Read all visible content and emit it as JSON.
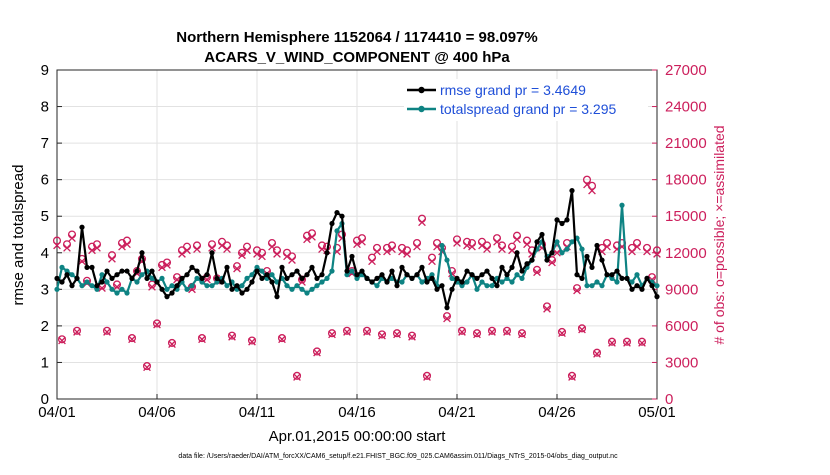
{
  "chart_data": {
    "type": "line",
    "title": "Northern Hemisphere 1152064 / 1174410 = 98.097%",
    "subtitle": "ACARS_V_WIND_COMPONENT @ 400 hPa",
    "xlabel": "Apr.01,2015 00:00:00 start",
    "ylabel": "rmse and totalspread",
    "ylabel_right": "# of obs: o=possible; ×=assimilated",
    "footnote": "data file: /Users/raeder/DAI/ATM_forcXX/CAM6_setup/f.e21.FHIST_BGC.f09_025.CAM6assim.011/Diags_NTrS_2015-04/obs_diag_output.nc",
    "xlim": [
      0,
      30
    ],
    "ylim": [
      0,
      9
    ],
    "ylim_right": [
      0,
      27000
    ],
    "x_ticks": [
      0,
      5,
      10,
      15,
      20,
      25,
      30
    ],
    "x_tick_labels": [
      "04/01",
      "04/06",
      "04/11",
      "04/16",
      "04/21",
      "04/26",
      "05/01"
    ],
    "y_ticks": [
      0,
      1,
      2,
      3,
      4,
      5,
      6,
      7,
      8,
      9
    ],
    "y_tick_labels": [
      "0",
      "1",
      "2",
      "3",
      "4",
      "5",
      "6",
      "7",
      "8",
      "9"
    ],
    "y_right_ticks": [
      0,
      3000,
      6000,
      9000,
      12000,
      15000,
      18000,
      21000,
      24000,
      27000
    ],
    "y_right_tick_labels": [
      "0",
      "3000",
      "6000",
      "9000",
      "12000",
      "15000",
      "18000",
      "21000",
      "24000",
      "27000"
    ],
    "grid": true,
    "legend_position": "top-right",
    "colors": {
      "rmse": "#000000",
      "spread": "#0e8383",
      "obs": "#cc1f5c",
      "legend_text": "#1f4fd8",
      "grid": "#e2e2e2"
    },
    "series": [
      {
        "name": "rmse grand pr = 3.4649",
        "x": [
          0.0,
          0.25,
          0.5,
          0.75,
          1.0,
          1.25,
          1.5,
          1.75,
          2.0,
          2.25,
          2.5,
          2.75,
          3.0,
          3.25,
          3.5,
          3.75,
          4.0,
          4.25,
          4.5,
          4.75,
          5.0,
          5.25,
          5.5,
          5.75,
          6.0,
          6.25,
          6.5,
          6.75,
          7.0,
          7.25,
          7.5,
          7.75,
          8.0,
          8.25,
          8.5,
          8.75,
          9.0,
          9.25,
          9.5,
          9.75,
          10.0,
          10.25,
          10.5,
          10.75,
          11.0,
          11.25,
          11.5,
          11.75,
          12.0,
          12.25,
          12.5,
          12.75,
          13.0,
          13.25,
          13.5,
          13.75,
          14.0,
          14.25,
          14.5,
          14.75,
          15.0,
          15.25,
          15.5,
          15.75,
          16.0,
          16.25,
          16.5,
          16.75,
          17.0,
          17.25,
          17.5,
          17.75,
          18.0,
          18.25,
          18.5,
          18.75,
          19.0,
          19.25,
          19.5,
          19.75,
          20.0,
          20.25,
          20.5,
          20.75,
          21.0,
          21.25,
          21.5,
          21.75,
          22.0,
          22.25,
          22.5,
          22.75,
          23.0,
          23.25,
          23.5,
          23.75,
          24.0,
          24.25,
          24.5,
          24.75,
          25.0,
          25.25,
          25.5,
          25.75,
          26.0,
          26.25,
          26.5,
          26.75,
          27.0,
          27.25,
          27.5,
          27.75,
          28.0,
          28.25,
          28.5,
          28.75,
          29.0,
          29.25,
          29.5,
          29.75,
          30.0
        ],
        "values": [
          3.3,
          3.2,
          3.4,
          3.1,
          3.3,
          4.7,
          3.6,
          3.6,
          3.1,
          3.2,
          3.5,
          3.3,
          3.4,
          3.5,
          3.5,
          3.3,
          3.5,
          4.0,
          3.3,
          3.5,
          3.2,
          3.0,
          2.8,
          2.9,
          3.1,
          3.3,
          3.4,
          3.6,
          3.5,
          3.3,
          3.4,
          4.0,
          3.3,
          3.2,
          3.6,
          3.0,
          3.1,
          2.9,
          3.0,
          3.2,
          3.5,
          3.3,
          3.4,
          3.2,
          2.8,
          3.6,
          3.3,
          3.4,
          3.5,
          3.3,
          3.4,
          3.6,
          3.3,
          3.4,
          4.0,
          4.8,
          5.1,
          5.0,
          3.5,
          3.9,
          3.4,
          3.5,
          3.3,
          3.2,
          3.3,
          3.4,
          3.2,
          3.5,
          3.1,
          3.6,
          3.4,
          3.3,
          3.4,
          3.6,
          3.2,
          3.3,
          3.0,
          3.1,
          2.5,
          3.0,
          3.3,
          3.2,
          3.5,
          3.4,
          3.3,
          3.4,
          3.5,
          3.3,
          3.1,
          3.6,
          3.4,
          3.6,
          4.0,
          3.5,
          3.7,
          3.8,
          4.3,
          4.5,
          3.8,
          4.0,
          4.9,
          4.8,
          4.9,
          5.7,
          3.4,
          3.3,
          3.9,
          3.6,
          4.2,
          3.8,
          3.4,
          3.4,
          3.5,
          3.3,
          3.3,
          3.0,
          3.1,
          3.0,
          3.3,
          3.1,
          2.8
        ],
        "color": "#000000"
      },
      {
        "name": "totalspread grand pr = 3.295",
        "x": [
          0.0,
          0.25,
          0.5,
          0.75,
          1.0,
          1.25,
          1.5,
          1.75,
          2.0,
          2.25,
          2.5,
          2.75,
          3.0,
          3.25,
          3.5,
          3.75,
          4.0,
          4.25,
          4.5,
          4.75,
          5.0,
          5.25,
          5.5,
          5.75,
          6.0,
          6.25,
          6.5,
          6.75,
          7.0,
          7.25,
          7.5,
          7.75,
          8.0,
          8.25,
          8.5,
          8.75,
          9.0,
          9.25,
          9.5,
          9.75,
          10.0,
          10.25,
          10.5,
          10.75,
          11.0,
          11.25,
          11.5,
          11.75,
          12.0,
          12.25,
          12.5,
          12.75,
          13.0,
          13.25,
          13.5,
          13.75,
          14.0,
          14.25,
          14.5,
          14.75,
          15.0,
          15.25,
          15.5,
          15.75,
          16.0,
          16.25,
          16.5,
          16.75,
          17.0,
          17.25,
          17.5,
          17.75,
          18.0,
          18.25,
          18.5,
          18.75,
          19.0,
          19.25,
          19.5,
          19.75,
          20.0,
          20.25,
          20.5,
          20.75,
          21.0,
          21.25,
          21.5,
          21.75,
          22.0,
          22.25,
          22.5,
          22.75,
          23.0,
          23.25,
          23.5,
          23.75,
          24.0,
          24.25,
          24.5,
          24.75,
          25.0,
          25.25,
          25.5,
          25.75,
          26.0,
          26.25,
          26.5,
          26.75,
          27.0,
          27.25,
          27.5,
          27.75,
          28.0,
          28.25,
          28.5,
          28.75,
          29.0,
          29.25,
          29.5,
          29.75,
          30.0
        ],
        "values": [
          3.0,
          3.6,
          3.5,
          3.4,
          3.3,
          3.1,
          3.2,
          3.1,
          3.0,
          3.4,
          3.2,
          3.0,
          2.9,
          3.0,
          2.9,
          3.3,
          3.2,
          3.4,
          3.5,
          3.3,
          3.2,
          3.3,
          3.0,
          3.1,
          3.0,
          3.2,
          3.0,
          3.1,
          3.3,
          3.2,
          3.1,
          3.1,
          3.2,
          3.3,
          3.1,
          3.2,
          3.0,
          3.1,
          3.3,
          3.4,
          3.6,
          3.5,
          3.3,
          3.4,
          3.2,
          3.3,
          3.1,
          3.0,
          3.1,
          3.0,
          2.9,
          3.0,
          3.1,
          3.2,
          3.3,
          3.5,
          4.6,
          4.8,
          3.4,
          3.5,
          3.3,
          3.4,
          3.3,
          3.2,
          3.1,
          3.3,
          3.2,
          3.3,
          3.2,
          3.2,
          3.4,
          3.3,
          3.4,
          3.2,
          3.3,
          3.4,
          3.1,
          4.2,
          3.8,
          3.3,
          3.2,
          3.1,
          3.2,
          3.4,
          3.0,
          3.2,
          3.1,
          3.1,
          3.3,
          3.2,
          3.3,
          3.2,
          3.4,
          3.3,
          3.6,
          3.8,
          4.1,
          4.3,
          3.9,
          4.0,
          4.3,
          4.0,
          4.1,
          4.3,
          4.4,
          4.1,
          3.1,
          3.1,
          3.2,
          3.1,
          3.4,
          3.3,
          3.2,
          5.3,
          3.3,
          3.2,
          3.4,
          3.1,
          3.3,
          3.2,
          3.1
        ],
        "color": "#0e8383"
      },
      {
        "name": "# of obs possible",
        "axis": "right",
        "marker": "circle",
        "x": [
          0.0,
          0.25,
          0.5,
          0.75,
          1.0,
          1.25,
          1.5,
          1.75,
          2.0,
          2.25,
          2.5,
          2.75,
          3.0,
          3.25,
          3.5,
          3.75,
          4.0,
          4.25,
          4.5,
          4.75,
          5.0,
          5.25,
          5.5,
          5.75,
          6.0,
          6.25,
          6.5,
          6.75,
          7.0,
          7.25,
          7.5,
          7.75,
          8.0,
          8.25,
          8.5,
          8.75,
          9.0,
          9.25,
          9.5,
          9.75,
          10.0,
          10.25,
          10.5,
          10.75,
          11.0,
          11.25,
          11.5,
          11.75,
          12.0,
          12.25,
          12.5,
          12.75,
          13.0,
          13.25,
          13.5,
          13.75,
          14.0,
          14.25,
          14.5,
          14.75,
          15.0,
          15.25,
          15.5,
          15.75,
          16.0,
          16.25,
          16.5,
          16.75,
          17.0,
          17.25,
          17.5,
          17.75,
          18.0,
          18.25,
          18.5,
          18.75,
          19.0,
          19.25,
          19.5,
          19.75,
          20.0,
          20.25,
          20.5,
          20.75,
          21.0,
          21.25,
          21.5,
          21.75,
          22.0,
          22.25,
          22.5,
          22.75,
          23.0,
          23.25,
          23.5,
          23.75,
          24.0,
          24.25,
          24.5,
          24.75,
          25.0,
          25.25,
          25.5,
          25.75,
          26.0,
          26.25,
          26.5,
          26.75,
          27.0,
          27.25,
          27.5,
          27.75,
          28.0,
          28.25,
          28.5,
          28.75,
          29.0,
          29.25,
          29.5,
          29.75,
          30.0
        ],
        "values": [
          13000,
          4900,
          12700,
          13500,
          5600,
          11500,
          9700,
          12500,
          12700,
          9300,
          5600,
          11800,
          9400,
          12800,
          13000,
          5000,
          10500,
          11500,
          2700,
          9400,
          6200,
          11000,
          11200,
          4600,
          10000,
          12200,
          12500,
          9200,
          12600,
          5000,
          10000,
          12700,
          9900,
          12900,
          12600,
          5200,
          10900,
          12000,
          12500,
          4800,
          12200,
          12000,
          10500,
          12800,
          12200,
          5000,
          12000,
          11700,
          1900,
          9800,
          13400,
          13600,
          3900,
          12600,
          12500,
          5400,
          12400,
          13500,
          5600,
          10500,
          13000,
          13200,
          5600,
          11600,
          12400,
          5300,
          12400,
          12600,
          5400,
          12400,
          12200,
          5200,
          12800,
          14800,
          1900,
          11600,
          12800,
          12400,
          6800,
          10500,
          13100,
          5600,
          12900,
          12800,
          5400,
          12900,
          12600,
          5600,
          13200,
          12600,
          5600,
          12500,
          13400,
          5400,
          13000,
          12200,
          10600,
          12700,
          7600,
          11400,
          12300,
          5500,
          12800,
          1900,
          9100,
          5800,
          18000,
          17500,
          3800,
          12400,
          12800,
          4700,
          12600,
          12800,
          4700,
          12400,
          12800,
          4700,
          12400,
          10000,
          12200
        ],
        "color": "#cc1f5c"
      },
      {
        "name": "# of obs assimilated",
        "axis": "right",
        "marker": "x",
        "x": [
          0.0,
          0.25,
          0.5,
          0.75,
          1.0,
          1.25,
          1.5,
          1.75,
          2.0,
          2.25,
          2.5,
          2.75,
          3.0,
          3.25,
          3.5,
          3.75,
          4.0,
          4.25,
          4.5,
          4.75,
          5.0,
          5.25,
          5.5,
          5.75,
          6.0,
          6.25,
          6.5,
          6.75,
          7.0,
          7.25,
          7.5,
          7.75,
          8.0,
          8.25,
          8.5,
          8.75,
          9.0,
          9.25,
          9.5,
          9.75,
          10.0,
          10.25,
          10.5,
          10.75,
          11.0,
          11.25,
          11.5,
          11.75,
          12.0,
          12.25,
          12.5,
          12.75,
          13.0,
          13.25,
          13.5,
          13.75,
          14.0,
          14.25,
          14.5,
          14.75,
          15.0,
          15.25,
          15.5,
          15.75,
          16.0,
          16.25,
          16.5,
          16.75,
          17.0,
          17.25,
          17.5,
          17.75,
          18.0,
          18.25,
          18.5,
          18.75,
          19.0,
          19.25,
          19.5,
          19.75,
          20.0,
          20.25,
          20.5,
          20.75,
          21.0,
          21.25,
          21.5,
          21.75,
          22.0,
          22.25,
          22.5,
          22.75,
          23.0,
          23.25,
          23.5,
          23.75,
          24.0,
          24.25,
          24.5,
          24.75,
          25.0,
          25.25,
          25.5,
          25.75,
          26.0,
          26.25,
          26.5,
          26.75,
          27.0,
          27.25,
          27.5,
          27.75,
          28.0,
          28.25,
          28.5,
          28.75,
          29.0,
          29.25,
          29.5,
          29.75,
          30.0
        ],
        "values": [
          12600,
          4800,
          12400,
          13200,
          5500,
          11300,
          9500,
          12200,
          12400,
          9100,
          5500,
          11500,
          9200,
          12500,
          12700,
          4900,
          10300,
          11300,
          2600,
          9200,
          6100,
          10800,
          11000,
          4500,
          9800,
          11900,
          12200,
          9000,
          12300,
          4900,
          9800,
          12400,
          9700,
          12600,
          12300,
          5100,
          10700,
          11800,
          12200,
          4700,
          11900,
          11700,
          10300,
          12500,
          11900,
          4900,
          11700,
          11400,
          1800,
          9600,
          13100,
          13300,
          3800,
          12300,
          12200,
          5300,
          12100,
          13200,
          5500,
          10300,
          12700,
          12900,
          5500,
          11300,
          12100,
          5200,
          12100,
          12300,
          5300,
          12100,
          11900,
          5100,
          12500,
          14500,
          1800,
          11300,
          12500,
          12100,
          6600,
          10300,
          12800,
          5500,
          12600,
          12500,
          5300,
          12600,
          12300,
          5500,
          12900,
          12300,
          5500,
          12200,
          13100,
          5300,
          12700,
          11900,
          10400,
          12400,
          7400,
          11200,
          12000,
          5400,
          12500,
          1800,
          8900,
          5700,
          17600,
          17100,
          3700,
          12100,
          12500,
          4600,
          12300,
          12500,
          4600,
          12100,
          12500,
          4600,
          12100,
          9800,
          11900
        ],
        "color": "#cc1f5c"
      }
    ]
  }
}
